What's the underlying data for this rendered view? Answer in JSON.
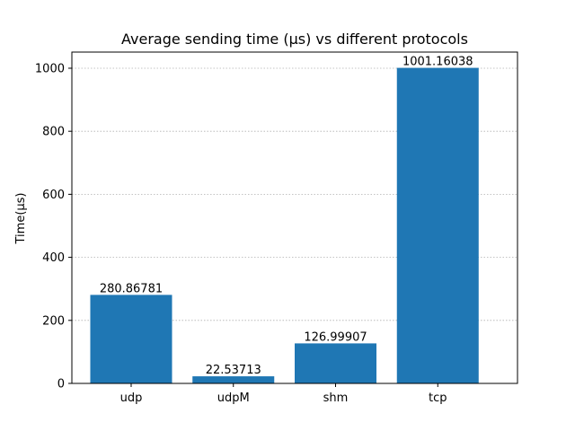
{
  "chart_data": {
    "type": "bar",
    "title": "Average sending time (µs) vs different protocols",
    "xlabel": "",
    "ylabel": "Time(µs)",
    "categories": [
      "udp",
      "udpM",
      "shm",
      "tcp"
    ],
    "values": [
      280.86781,
      22.53713,
      126.99907,
      1001.16038
    ],
    "data_labels": [
      "280.86781",
      "22.53713",
      "126.99907",
      "1001.16038"
    ],
    "ylim": [
      0,
      1051.22
    ],
    "yticks": [
      0,
      200,
      400,
      600,
      800,
      1000
    ],
    "ytick_labels": [
      "0",
      "200",
      "400",
      "600",
      "800",
      "1000"
    ],
    "grid": "y-dotted",
    "legend": "none",
    "bar_color": "#1f77b4"
  }
}
